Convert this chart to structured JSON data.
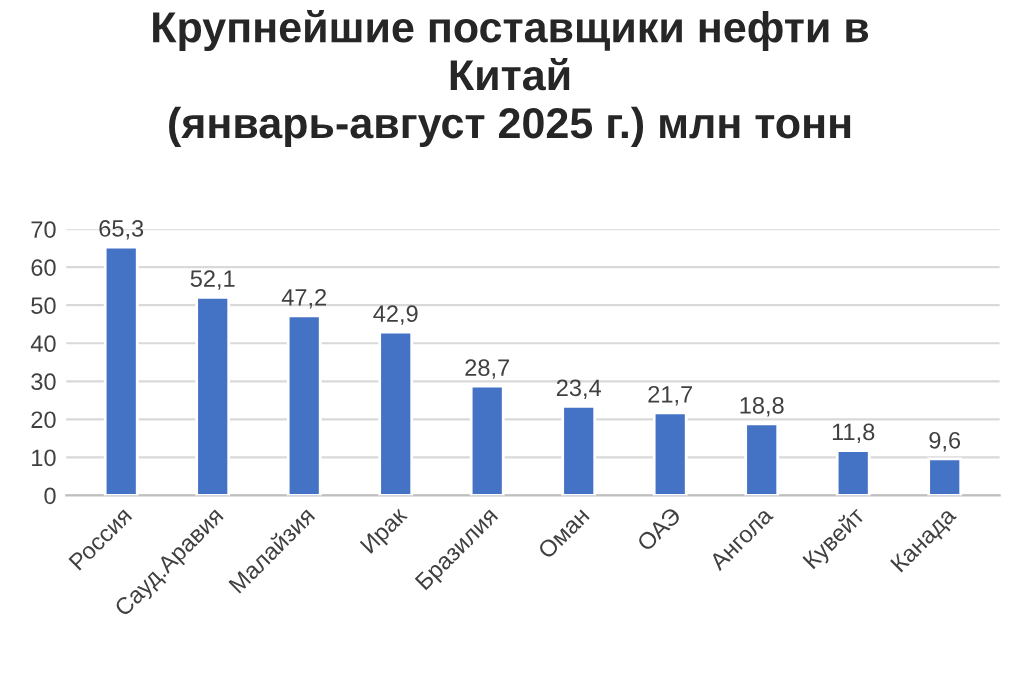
{
  "chart_data": {
    "type": "bar",
    "title": "Крупнейшие поставщики нефти в\nКитай\n(январь-август 2025 г.) млн тонн",
    "categories": [
      "Россия",
      "Сауд.Аравия",
      "Малайзия",
      "Ирак",
      "Бразилия",
      "Оман",
      "ОАЭ",
      "Ангола",
      "Кувейт",
      "Канада"
    ],
    "values": [
      65.3,
      52.1,
      47.2,
      42.9,
      28.7,
      23.4,
      21.7,
      18.8,
      11.8,
      9.6
    ],
    "value_labels": [
      "65,3",
      "52,1",
      "47,2",
      "42,9",
      "28,7",
      "23,4",
      "21,7",
      "18,8",
      "11,8",
      "9,6"
    ],
    "color": "#4472c4",
    "ylim": [
      0,
      70
    ],
    "yticks": [
      0,
      10,
      20,
      30,
      40,
      50,
      60,
      70
    ],
    "grid": "y",
    "legend": false
  }
}
